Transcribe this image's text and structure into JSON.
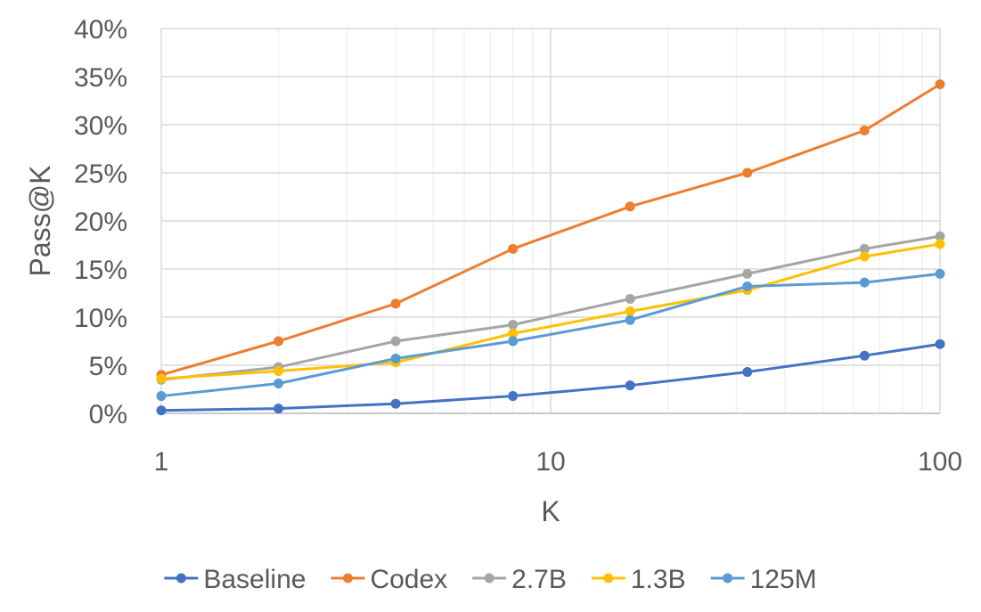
{
  "chart_data": {
    "type": "line",
    "title": "",
    "xlabel": "K",
    "ylabel": "Pass@K",
    "x_scale": "log",
    "xlim": [
      1,
      100
    ],
    "ylim": [
      0,
      0.4
    ],
    "grid": true,
    "legend_position": "bottom",
    "x_ticks": [
      {
        "value": 1,
        "label": "1"
      },
      {
        "value": 10,
        "label": "10"
      },
      {
        "value": 100,
        "label": "100"
      }
    ],
    "y_ticks": [
      {
        "value": 0,
        "label": "0%"
      },
      {
        "value": 0.05,
        "label": "5%"
      },
      {
        "value": 0.1,
        "label": "10%"
      },
      {
        "value": 0.15,
        "label": "15%"
      },
      {
        "value": 0.2,
        "label": "20%"
      },
      {
        "value": 0.25,
        "label": "25%"
      },
      {
        "value": 0.3,
        "label": "30%"
      },
      {
        "value": 0.35,
        "label": "35%"
      },
      {
        "value": 0.4,
        "label": "40%"
      }
    ],
    "x": [
      1,
      2,
      4,
      8,
      16,
      32,
      64,
      100
    ],
    "series": [
      {
        "name": "Baseline",
        "color": "#4472C4",
        "values": [
          0.003,
          0.005,
          0.01,
          0.018,
          0.029,
          0.043,
          0.06,
          0.072
        ]
      },
      {
        "name": "Codex",
        "color": "#ED7D31",
        "values": [
          0.04,
          0.075,
          0.114,
          0.171,
          0.215,
          0.25,
          0.294,
          0.342
        ]
      },
      {
        "name": "2.7B",
        "color": "#A5A5A5",
        "values": [
          0.035,
          0.048,
          0.075,
          0.092,
          0.119,
          0.145,
          0.171,
          0.184
        ]
      },
      {
        "name": "1.3B",
        "color": "#FFC000",
        "values": [
          0.036,
          0.044,
          0.053,
          0.083,
          0.106,
          0.128,
          0.163,
          0.176
        ]
      },
      {
        "name": "125M",
        "color": "#5B9BD5",
        "values": [
          0.018,
          0.031,
          0.057,
          0.075,
          0.097,
          0.132,
          0.136,
          0.145
        ]
      }
    ]
  }
}
